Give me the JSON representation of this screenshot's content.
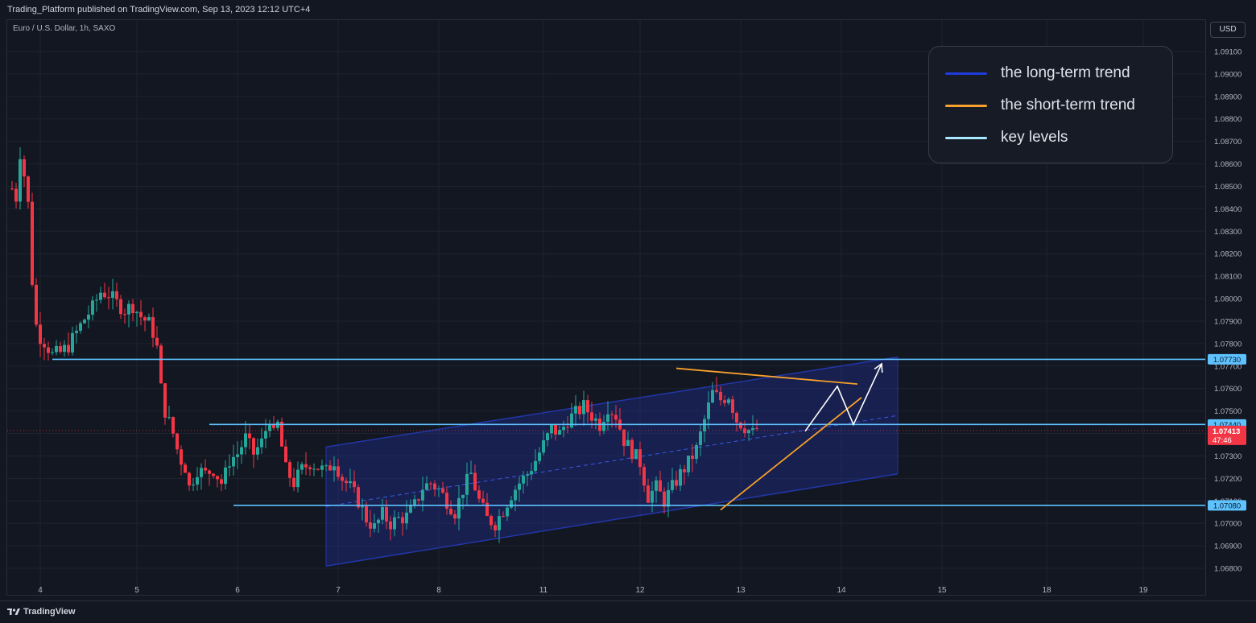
{
  "header": {
    "published": "Trading_Platform published on TradingView.com, Sep 13, 2023 12:12 UTC+4"
  },
  "symbol": {
    "label": "Euro / U.S. Dollar, 1h, SAXO"
  },
  "currency_button": {
    "label": "USD"
  },
  "footer": {
    "brand": "TradingView"
  },
  "legend": {
    "items": [
      {
        "label": "the long-term trend",
        "color": "#1e3bdc"
      },
      {
        "label": "the short-term trend",
        "color": "#f7a02c"
      },
      {
        "label": "key levels",
        "color": "#a5e8ff"
      }
    ]
  },
  "colors": {
    "up": "#26a69a",
    "down": "#f23645",
    "key_level": "#5ec2ff",
    "channel": "#2236a8",
    "short_trend": "#f7a02c",
    "projection": "#ffffff"
  },
  "chart_data": {
    "type": "candlestick",
    "instrument": "Euro / U.S. Dollar",
    "timeframe": "1h",
    "ylim": [
      1.0676,
      1.0915
    ],
    "y_ticks": [
      "1.06800",
      "1.06900",
      "1.07000",
      "1.07100",
      "1.07200",
      "1.07300",
      "1.07400",
      "1.07500",
      "1.07600",
      "1.07700",
      "1.07800",
      "1.07900",
      "1.08000",
      "1.08100",
      "1.08200",
      "1.08300",
      "1.08400",
      "1.08500",
      "1.08600",
      "1.08700",
      "1.08800",
      "1.08900",
      "1.09000",
      "1.09100"
    ],
    "x_ticks": [
      {
        "label": "4",
        "t": 7
      },
      {
        "label": "5",
        "t": 31
      },
      {
        "label": "6",
        "t": 56
      },
      {
        "label": "7",
        "t": 81
      },
      {
        "label": "8",
        "t": 106
      },
      {
        "label": "11",
        "t": 132
      },
      {
        "label": "12",
        "t": 156
      },
      {
        "label": "13",
        "t": 181
      },
      {
        "label": "14",
        "t": 206
      },
      {
        "label": "15",
        "t": 231
      },
      {
        "label": "18",
        "t": 257
      },
      {
        "label": "19",
        "t": 281
      }
    ],
    "key_levels": [
      1.0773,
      1.0744,
      1.0708
    ],
    "level_labels": [
      "1.07730",
      "1.07440",
      "1.07080"
    ],
    "current_price": {
      "value": 1.07413,
      "label": "1.07413",
      "countdown": "47:46"
    },
    "close_path": [
      [
        0,
        1.0849
      ],
      [
        1,
        1.0845
      ],
      [
        2,
        1.0865
      ],
      [
        3,
        1.0855
      ],
      [
        4,
        1.0842
      ],
      [
        5,
        1.0808
      ],
      [
        6,
        1.0788
      ],
      [
        7,
        1.0783
      ],
      [
        8,
        1.0781
      ],
      [
        9,
        1.0778
      ],
      [
        10,
        1.0775
      ],
      [
        12,
        1.0776
      ],
      [
        14,
        1.0779
      ],
      [
        16,
        1.0785
      ],
      [
        18,
        1.0791
      ],
      [
        20,
        1.0796
      ],
      [
        22,
        1.0803
      ],
      [
        24,
        1.0802
      ],
      [
        26,
        1.0798
      ],
      [
        28,
        1.0795
      ],
      [
        30,
        1.0797
      ],
      [
        32,
        1.0792
      ],
      [
        34,
        1.0789
      ],
      [
        35,
        1.0785
      ],
      [
        36,
        1.0778
      ],
      [
        37,
        1.076
      ],
      [
        38,
        1.075
      ],
      [
        39,
        1.0745
      ],
      [
        40,
        1.074
      ],
      [
        41,
        1.0733
      ],
      [
        42,
        1.0728
      ],
      [
        43,
        1.0725
      ],
      [
        44,
        1.0716
      ],
      [
        46,
        1.0724
      ],
      [
        48,
        1.0722
      ],
      [
        50,
        1.0724
      ],
      [
        52,
        1.0718
      ],
      [
        53,
        1.0722
      ],
      [
        54,
        1.0728
      ],
      [
        56,
        1.0731
      ],
      [
        58,
        1.0738
      ],
      [
        60,
        1.0731
      ],
      [
        62,
        1.0736
      ],
      [
        64,
        1.0747
      ],
      [
        65,
        1.0739
      ],
      [
        66,
        1.0744
      ],
      [
        68,
        1.0724
      ],
      [
        70,
        1.0718
      ],
      [
        72,
        1.0724
      ],
      [
        74,
        1.0727
      ],
      [
        76,
        1.0725
      ],
      [
        78,
        1.0723
      ],
      [
        80,
        1.0728
      ],
      [
        82,
        1.072
      ],
      [
        84,
        1.0716
      ],
      [
        86,
        1.071
      ],
      [
        88,
        1.0702
      ],
      [
        90,
        1.0698
      ],
      [
        92,
        1.0704
      ],
      [
        94,
        1.07
      ],
      [
        96,
        1.0702
      ],
      [
        98,
        1.0703
      ],
      [
        100,
        1.0708
      ],
      [
        102,
        1.0716
      ],
      [
        104,
        1.0718
      ],
      [
        106,
        1.0715
      ],
      [
        108,
        1.071
      ],
      [
        110,
        1.0705
      ],
      [
        112,
        1.0715
      ],
      [
        114,
        1.0722
      ],
      [
        116,
        1.071
      ],
      [
        118,
        1.0702
      ],
      [
        120,
        1.07
      ],
      [
        122,
        1.0706
      ],
      [
        124,
        1.0713
      ],
      [
        126,
        1.0718
      ],
      [
        128,
        1.0722
      ],
      [
        130,
        1.0728
      ],
      [
        132,
        1.0735
      ],
      [
        134,
        1.0742
      ],
      [
        136,
        1.074
      ],
      [
        138,
        1.0746
      ],
      [
        140,
        1.0749
      ],
      [
        142,
        1.0752
      ],
      [
        144,
        1.0748
      ],
      [
        146,
        1.0744
      ],
      [
        148,
        1.0752
      ],
      [
        150,
        1.0748
      ],
      [
        152,
        1.0737
      ],
      [
        154,
        1.0732
      ],
      [
        156,
        1.0727
      ],
      [
        158,
        1.0712
      ],
      [
        160,
        1.0716
      ],
      [
        162,
        1.071
      ],
      [
        164,
        1.0716
      ],
      [
        166,
        1.0722
      ],
      [
        168,
        1.0727
      ],
      [
        170,
        1.0733
      ],
      [
        172,
        1.0746
      ],
      [
        174,
        1.0758
      ],
      [
        176,
        1.0755
      ],
      [
        178,
        1.0757
      ],
      [
        180,
        1.0746
      ],
      [
        182,
        1.0743
      ],
      [
        184,
        1.074
      ],
      [
        185,
        1.0742
      ]
    ],
    "long_term_channel": {
      "upper": [
        [
          78,
          1.0734
        ],
        [
          220,
          1.0774
        ]
      ],
      "lower": [
        [
          78,
          1.0681
        ],
        [
          220,
          1.0722
        ]
      ]
    },
    "short_term_trend": {
      "resistance": [
        [
          165,
          1.0769
        ],
        [
          210,
          1.0762
        ]
      ],
      "support": [
        [
          176,
          1.0706
        ],
        [
          211,
          1.0756
        ]
      ]
    },
    "projection": [
      [
        197,
        1.0741
      ],
      [
        205,
        1.0761
      ],
      [
        209,
        1.0744
      ],
      [
        216,
        1.0771
      ]
    ]
  }
}
